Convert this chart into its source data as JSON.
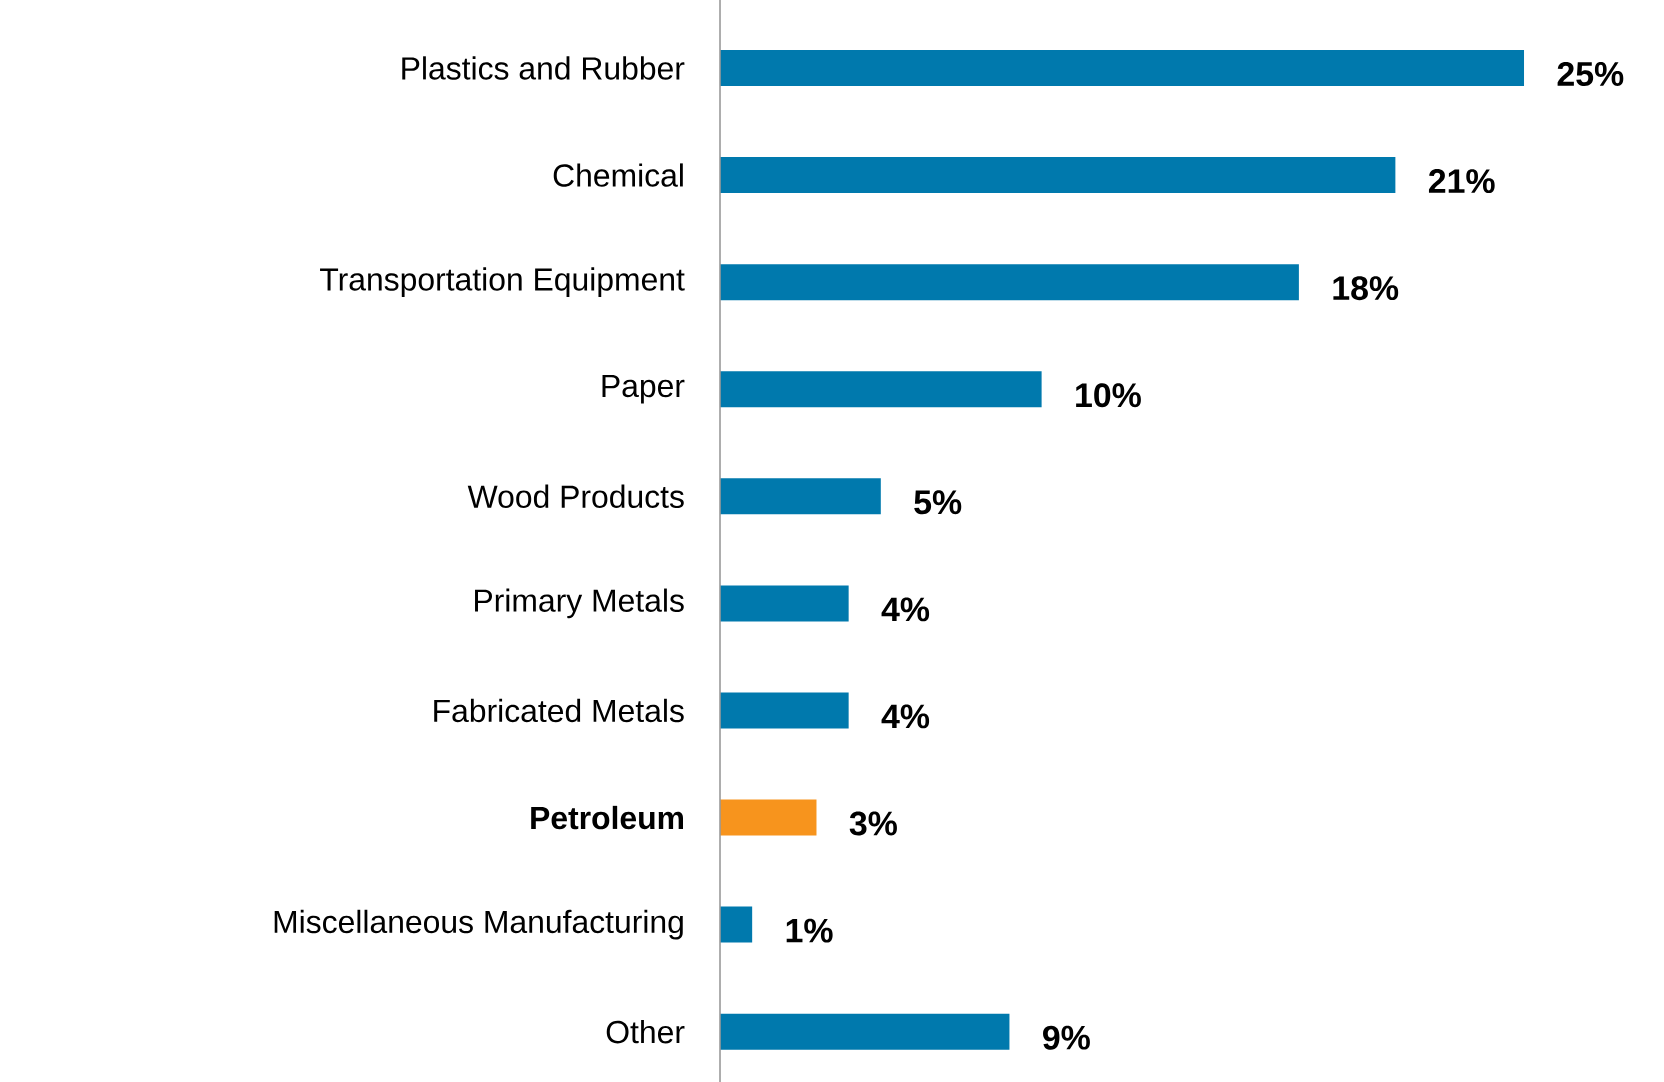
{
  "chart_data": {
    "type": "bar",
    "orientation": "horizontal",
    "categories": [
      "Plastics and Rubber",
      "Chemical",
      "Transportation Equipment",
      "Paper",
      "Wood Products",
      "Primary Metals",
      "Fabricated Metals",
      "**Petroleum**",
      "Miscellaneous Manufacturing",
      "Other"
    ],
    "values": [
      25,
      21,
      18,
      10,
      5,
      4,
      4,
      3,
      1,
      9
    ],
    "colors": [
      "#0079ad",
      "#0079ad",
      "#0079ad",
      "#0079ad",
      "#0079ad",
      "#0079ad",
      "#0079ad",
      "#f7941d",
      "#0079ad",
      "#0079ad"
    ],
    "value_labels": [
      "25%",
      "21%",
      "18%",
      "10%",
      "5%",
      "4%",
      "4%",
      "3%",
      "1%",
      "9%"
    ],
    "grid": false
  }
}
